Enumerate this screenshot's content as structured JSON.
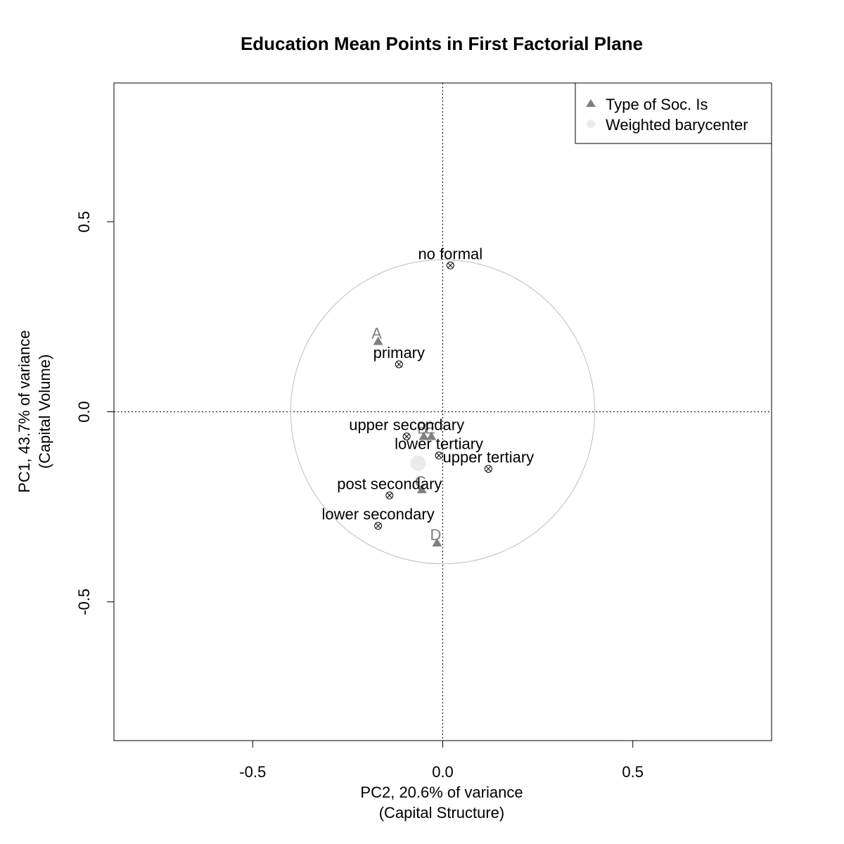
{
  "chart_data": {
    "type": "scatter",
    "title": "Education Mean Points in First Factorial Plane",
    "xlabel": "PC2, 20.6% of variance",
    "xlabel_sub": "(Capital Structure)",
    "ylabel": "PC1, 43.7% of variance",
    "ylabel_sub": "(Capital Volume)",
    "xlim": [
      -0.865,
      0.865
    ],
    "ylim": [
      -0.865,
      0.865
    ],
    "x_ticks": [
      -0.5,
      0.0,
      0.5
    ],
    "y_ticks": [
      -0.5,
      0.0,
      0.5
    ],
    "x_tick_labels": [
      "-0.5",
      "0.0",
      "0.5"
    ],
    "y_tick_labels": [
      "-0.5",
      "0.0",
      "0.5"
    ],
    "reference_lines": {
      "x": 0,
      "y": 0,
      "style": "dotted"
    },
    "circle": {
      "cx": 0,
      "cy": 0,
      "r": 0.4,
      "color": "#bebebe"
    },
    "legend": {
      "position": "top-right",
      "items": [
        {
          "label": "Type of Soc. Is",
          "symbol": "triangle",
          "color": "#808080"
        },
        {
          "label": "Weighted barycenter",
          "symbol": "circle",
          "color": "#ebebeb"
        }
      ]
    },
    "series": [
      {
        "name": "Education",
        "symbol": "circled-x",
        "color": "#000000",
        "points": [
          {
            "label": "no formal",
            "x": 0.02,
            "y": 0.385
          },
          {
            "label": "primary",
            "x": -0.115,
            "y": 0.125
          },
          {
            "label": "upper secondary",
            "x": -0.095,
            "y": -0.065
          },
          {
            "label": "lower tertiary",
            "x": -0.01,
            "y": -0.115
          },
          {
            "label": "upper tertiary",
            "x": 0.12,
            "y": -0.15
          },
          {
            "label": "post secondary",
            "x": -0.14,
            "y": -0.22
          },
          {
            "label": "lower secondary",
            "x": -0.17,
            "y": -0.3
          }
        ]
      },
      {
        "name": "Type of Soc. Is",
        "symbol": "triangle",
        "color": "#808080",
        "points": [
          {
            "label": "A",
            "x": -0.17,
            "y": 0.185
          },
          {
            "label": "B",
            "x": -0.05,
            "y": -0.065
          },
          {
            "label": "E",
            "x": -0.03,
            "y": -0.065
          },
          {
            "label": "C",
            "x": -0.055,
            "y": -0.205
          },
          {
            "label": "D",
            "x": -0.015,
            "y": -0.345
          }
        ]
      },
      {
        "name": "Weighted barycenter",
        "symbol": "circle",
        "color": "#ebebeb",
        "points": [
          {
            "label": "",
            "x": -0.065,
            "y": -0.135
          }
        ]
      }
    ]
  }
}
